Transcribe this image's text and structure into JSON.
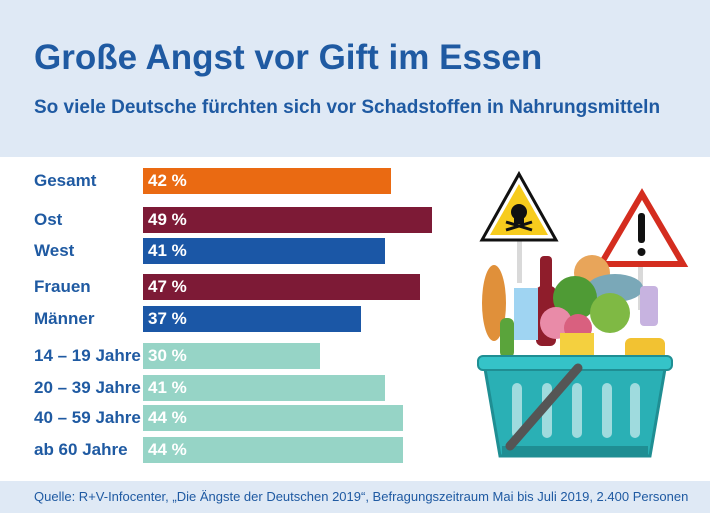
{
  "header": {
    "title": "Große Angst vor Gift im Essen",
    "subtitle": "So viele Deutsche fürchten sich vor Schadstoffen in Nahrungsmitteln"
  },
  "footer": {
    "source": "Quelle: R+V-Infocenter, „Die Ängste der Deutschen 2019“, Befragungszeitraum Mai bis Juli 2019, 2.400 Personen"
  },
  "colors": {
    "header_bg": "#dfe9f5",
    "text_blue": "#1f5aa2",
    "gesamt": "#ea6a12",
    "ost_frauen": "#7d1a36",
    "west_maenner": "#1b57a6",
    "age": "#96d4c6"
  },
  "illustration": {
    "icon": "food-basket-with-warning-signs-icon"
  },
  "chart_data": {
    "type": "bar",
    "orientation": "horizontal",
    "unit": "%",
    "categories": [
      "Gesamt",
      "Ost",
      "West",
      "Frauen",
      "Männer",
      "14 – 19 Jahre",
      "20 – 39 Jahre",
      "40 – 59 Jahre",
      "ab 60 Jahre"
    ],
    "values": [
      42,
      49,
      41,
      47,
      37,
      30,
      41,
      44,
      44
    ],
    "value_labels": [
      "42 %",
      "49 %",
      "41 %",
      "47 %",
      "37 %",
      "30 %",
      "41 %",
      "44 %",
      "44 %"
    ],
    "bar_colors": [
      "#ea6a12",
      "#7d1a36",
      "#1b57a6",
      "#7d1a36",
      "#1b57a6",
      "#96d4c6",
      "#96d4c6",
      "#96d4c6",
      "#96d4c6"
    ],
    "title": "Große Angst vor Gift im Essen",
    "subtitle": "So viele Deutsche fürchten sich vor Schadstoffen in Nahrungsmitteln",
    "xlim": [
      0,
      100
    ],
    "grid": false,
    "legend": "none"
  }
}
